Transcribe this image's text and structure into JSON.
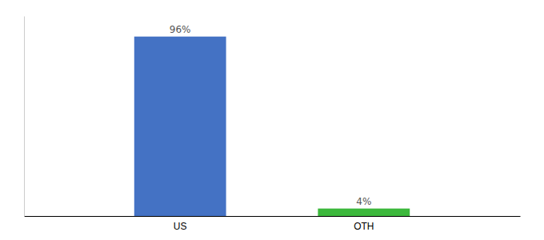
{
  "chart_data": {
    "type": "bar",
    "categories": [
      "US",
      "OTH"
    ],
    "values": [
      96,
      4
    ],
    "value_labels": [
      "96%",
      "4%"
    ],
    "colors": [
      "#4472c4",
      "#3cb83c"
    ],
    "ylim": [
      0,
      107
    ],
    "data_labels": true,
    "tick_labels": "x"
  }
}
